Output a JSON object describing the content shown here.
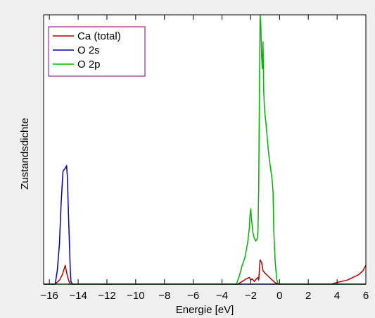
{
  "chart_data": {
    "type": "line",
    "title": "",
    "xlabel": "Energie [eV]",
    "ylabel": "Zustandsdichte",
    "xlim": [
      -16.4,
      6
    ],
    "ylim": [
      0,
      1
    ],
    "xticks": [
      "-16",
      "-14",
      "-12",
      "-10",
      "-8",
      "-6",
      "-4",
      "-2",
      "0",
      "2",
      "4",
      "6"
    ],
    "yticks": [],
    "grid": false,
    "legend_position": "top-left",
    "series": [
      {
        "name": "Ca (total)",
        "color": "#b40000",
        "points": [
          [
            -16.4,
            0
          ],
          [
            -15.6,
            0
          ],
          [
            -15.3,
            0.015
          ],
          [
            -15.1,
            0.035
          ],
          [
            -14.9,
            0.07
          ],
          [
            -14.75,
            0.03
          ],
          [
            -14.6,
            0.005
          ],
          [
            -14.5,
            0
          ],
          [
            -2.9,
            0
          ],
          [
            -2.6,
            0.01
          ],
          [
            -2.3,
            0.02
          ],
          [
            -2.1,
            0.025
          ],
          [
            -2.0,
            0.015
          ],
          [
            -1.9,
            0.02
          ],
          [
            -1.75,
            0.01
          ],
          [
            -1.6,
            0.02
          ],
          [
            -1.5,
            0.025
          ],
          [
            -1.45,
            0.015
          ],
          [
            -1.35,
            0.09
          ],
          [
            -1.25,
            0.08
          ],
          [
            -1.15,
            0.05
          ],
          [
            -1.0,
            0.04
          ],
          [
            -0.8,
            0.03
          ],
          [
            -0.6,
            0.02
          ],
          [
            -0.3,
            0.005
          ],
          [
            0.0,
            0
          ],
          [
            3.6,
            0
          ],
          [
            3.9,
            0.005
          ],
          [
            4.3,
            0.01
          ],
          [
            4.7,
            0.015
          ],
          [
            5.1,
            0.025
          ],
          [
            5.5,
            0.035
          ],
          [
            5.8,
            0.05
          ],
          [
            6.0,
            0.07
          ]
        ]
      },
      {
        "name": "O 2s",
        "color": "#0000b4",
        "points": [
          [
            -16.4,
            0
          ],
          [
            -15.6,
            0
          ],
          [
            -15.45,
            0.05
          ],
          [
            -15.3,
            0.15
          ],
          [
            -15.2,
            0.28
          ],
          [
            -15.1,
            0.38
          ],
          [
            -15.05,
            0.42
          ],
          [
            -14.9,
            0.43
          ],
          [
            -14.8,
            0.44
          ],
          [
            -14.75,
            0.4
          ],
          [
            -14.65,
            0.22
          ],
          [
            -14.55,
            0.06
          ],
          [
            -14.5,
            0.01
          ],
          [
            -14.4,
            0
          ],
          [
            6.0,
            0
          ]
        ]
      },
      {
        "name": "O 2p",
        "color": "#00b400",
        "points": [
          [
            -16.4,
            0
          ],
          [
            -3.0,
            0
          ],
          [
            -2.8,
            0.03
          ],
          [
            -2.6,
            0.07
          ],
          [
            -2.4,
            0.1
          ],
          [
            -2.2,
            0.16
          ],
          [
            -2.1,
            0.21
          ],
          [
            -2.05,
            0.26
          ],
          [
            -2.0,
            0.28
          ],
          [
            -1.95,
            0.24
          ],
          [
            -1.85,
            0.19
          ],
          [
            -1.75,
            0.17
          ],
          [
            -1.65,
            0.16
          ],
          [
            -1.55,
            0.17
          ],
          [
            -1.5,
            0.2
          ],
          [
            -1.45,
            0.36
          ],
          [
            -1.4,
            0.7
          ],
          [
            -1.35,
            1.0
          ],
          [
            -1.3,
            0.96
          ],
          [
            -1.25,
            0.85
          ],
          [
            -1.2,
            0.8
          ],
          [
            -1.15,
            0.9
          ],
          [
            -1.1,
            0.72
          ],
          [
            -1.05,
            0.65
          ],
          [
            -0.95,
            0.6
          ],
          [
            -0.85,
            0.54
          ],
          [
            -0.75,
            0.48
          ],
          [
            -0.6,
            0.42
          ],
          [
            -0.5,
            0.38
          ],
          [
            -0.45,
            0.34
          ],
          [
            -0.4,
            0.2
          ],
          [
            -0.3,
            0.08
          ],
          [
            -0.2,
            0.02
          ],
          [
            -0.1,
            0
          ],
          [
            6.0,
            0
          ]
        ]
      }
    ]
  }
}
